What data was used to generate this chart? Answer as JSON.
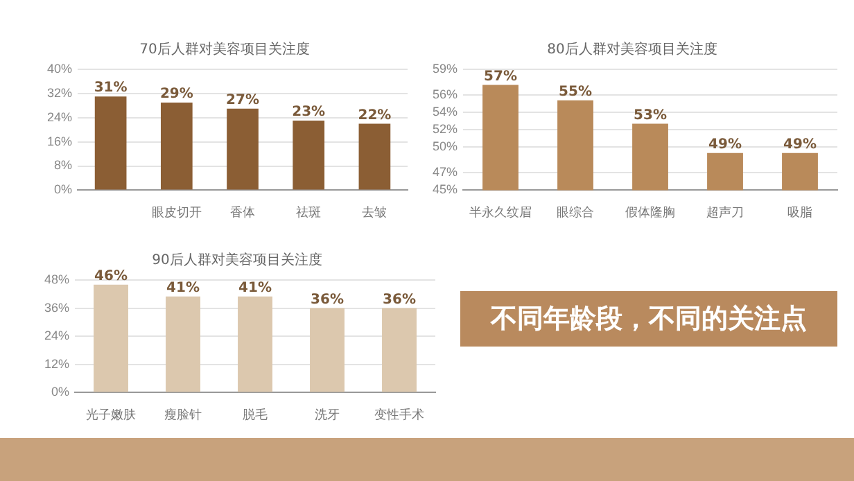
{
  "chart_data": [
    {
      "type": "bar",
      "title": "70后人群对美容项目关注度",
      "categories": [
        null,
        "眼皮切开",
        "香体",
        "祛斑",
        "去皱"
      ],
      "values": [
        31,
        29,
        27,
        23,
        22
      ],
      "color": "#8b5e34",
      "ylim": [
        0,
        40
      ],
      "yticks": [
        {
          "value": 0,
          "label": "0%"
        },
        {
          "value": 8,
          "label": "8%"
        },
        {
          "value": 16,
          "label": "16%"
        },
        {
          "value": 24,
          "label": "24%"
        },
        {
          "value": 32,
          "label": "32%"
        },
        {
          "value": 40,
          "label": "40%"
        }
      ],
      "value_labels": [
        "31%",
        "29%",
        "27%",
        "23%",
        "22%"
      ],
      "grid": "y"
    },
    {
      "type": "bar",
      "title": "80后人群对美容项目关注度",
      "categories": [
        "半永久纹眉",
        "眼综合",
        "假体隆胸",
        "超声刀",
        "吸脂"
      ],
      "values": [
        57.2,
        55.4,
        52.7,
        49.3,
        49.3
      ],
      "color": "#b98a5a",
      "ylim": [
        45,
        59
      ],
      "yticks": [
        {
          "value": 45,
          "label": "45%"
        },
        {
          "value": 47,
          "label": "47%"
        },
        {
          "value": 50,
          "label": "50%"
        },
        {
          "value": 52,
          "label": "52%"
        },
        {
          "value": 54,
          "label": "54%"
        },
        {
          "value": 56,
          "label": "56%"
        },
        {
          "value": 59,
          "label": "59%"
        }
      ],
      "value_labels": [
        "57%",
        "55%",
        "53%",
        "49%",
        "49%"
      ],
      "grid": "y"
    },
    {
      "type": "bar",
      "title": "90后人群对美容项目关注度",
      "categories": [
        "光子嫩肤",
        "瘦脸针",
        "脱毛",
        "洗牙",
        "变性手术"
      ],
      "values": [
        46,
        41,
        41,
        36,
        36
      ],
      "color": "#dcc8ae",
      "ylim": [
        0,
        48
      ],
      "yticks": [
        {
          "value": 0,
          "label": "0%"
        },
        {
          "value": 12,
          "label": "12%"
        },
        {
          "value": 24,
          "label": "24%"
        },
        {
          "value": 36,
          "label": "36%"
        },
        {
          "value": 48,
          "label": "48%"
        }
      ],
      "value_labels": [
        "46%",
        "41%",
        "41%",
        "36%",
        "36%"
      ],
      "grid": "y"
    },
    {
      "type": "other",
      "title": "不同年龄段，不同的关注点"
    }
  ]
}
